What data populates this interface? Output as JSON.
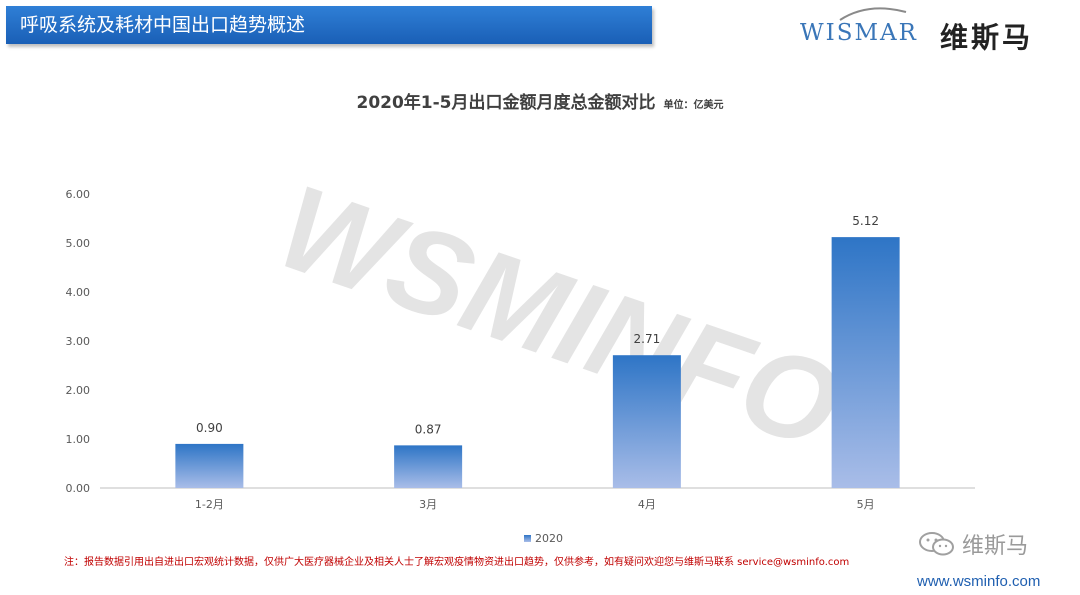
{
  "header": {
    "title": "呼吸系统及耗材中国出口趋势概述"
  },
  "logo": {
    "latin": "WISMAR",
    "chinese": "维斯马"
  },
  "watermark": "WSMINFO",
  "chart_data": {
    "type": "bar",
    "title": "2020年1-5月出口金额月度总金额对比",
    "unit": "单位：亿美元",
    "categories": [
      "1-2月",
      "3月",
      "4月",
      "5月"
    ],
    "series": [
      {
        "name": "2020",
        "values": [
          0.9,
          0.87,
          2.71,
          5.12
        ]
      }
    ],
    "data_labels": [
      "0.90",
      "0.87",
      "2.71",
      "5.12"
    ],
    "ylim": [
      0,
      6
    ],
    "yticks": [
      "0.00",
      "1.00",
      "2.00",
      "3.00",
      "4.00",
      "5.00",
      "6.00"
    ],
    "grid": false,
    "legend": "bottom-center",
    "bar_color_top": "#2e75c6",
    "bar_color_bottom": "#a9bde8"
  },
  "footnote": "注：报告数据引用出自进出口宏观统计数据，仅供广大医疗器械企业及相关人士了解宏观疫情物资进出口趋势，仅供参考，如有疑问欢迎您与维斯马联系  service@wsminfo.com",
  "wechat": {
    "label": "维斯马",
    "icon": "wechat-icon"
  },
  "website": "www.wsminfo.com"
}
